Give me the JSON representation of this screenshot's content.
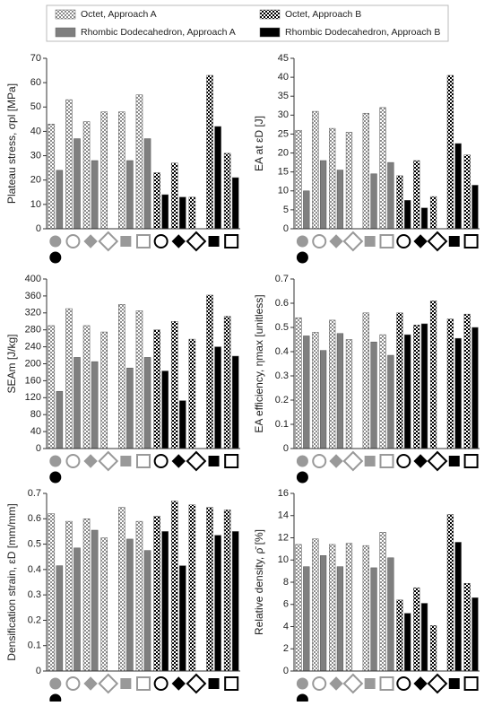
{
  "legend": [
    {
      "name": "Octet, Approach A",
      "color": "#8c8c8c",
      "style": "checker"
    },
    {
      "name": "Rhombic Dodecahedron, Approach A",
      "color": "#7f7f7f",
      "style": "solid"
    },
    {
      "name": "Octet, Approach B",
      "color": "#000000",
      "style": "checker"
    },
    {
      "name": "Rhombic Dodecahedron, Approach B",
      "color": "#000000",
      "style": "solid"
    }
  ],
  "chart_data": [
    {
      "type": "bar",
      "ylabel": "Plateau stress, σpl [MPa]",
      "categories": [
        null,
        null,
        null,
        null,
        null,
        null,
        null,
        null,
        null,
        null,
        null
      ],
      "series": [
        {
          "values": [
            43,
            53,
            44,
            48,
            48,
            55,
            null,
            null,
            null,
            null,
            null
          ]
        },
        {
          "values": [
            24,
            37,
            28,
            null,
            28,
            37,
            null,
            null,
            null,
            null,
            null
          ]
        },
        {
          "values": [
            null,
            null,
            null,
            null,
            null,
            null,
            23,
            27,
            13,
            63,
            31
          ]
        },
        {
          "values": [
            null,
            null,
            null,
            null,
            null,
            null,
            14,
            13,
            null,
            42,
            21
          ]
        }
      ],
      "ylim": [
        0,
        70
      ],
      "yticks": [
        0,
        10,
        20,
        30,
        40,
        50,
        60,
        70
      ]
    },
    {
      "type": "bar",
      "ylabel": "EA at εD [J]",
      "categories": [
        null,
        null,
        null,
        null,
        null,
        null,
        null,
        null,
        null,
        null,
        null
      ],
      "series": [
        {
          "values": [
            26,
            31,
            26.5,
            25.5,
            30.5,
            32,
            null,
            null,
            null,
            null,
            null
          ]
        },
        {
          "values": [
            10,
            18,
            15.5,
            null,
            14.5,
            17.5,
            null,
            null,
            null,
            null,
            null
          ]
        },
        {
          "values": [
            null,
            null,
            null,
            null,
            null,
            null,
            14,
            18,
            8.5,
            40.5,
            19.5
          ]
        },
        {
          "values": [
            null,
            null,
            null,
            null,
            null,
            null,
            7.5,
            5.5,
            null,
            22.5,
            11.5
          ]
        }
      ],
      "ylim": [
        0,
        45
      ],
      "yticks": [
        0,
        5,
        10,
        15,
        20,
        25,
        30,
        35,
        40,
        45
      ]
    },
    {
      "type": "bar",
      "ylabel": "SEAm [J/kg]",
      "categories": [
        null,
        null,
        null,
        null,
        null,
        null,
        null,
        null,
        null,
        null,
        null
      ],
      "series": [
        {
          "values": [
            290,
            330,
            290,
            275,
            340,
            325,
            null,
            null,
            null,
            null,
            null
          ]
        },
        {
          "values": [
            135,
            215,
            205,
            null,
            190,
            215,
            null,
            null,
            null,
            null,
            null
          ]
        },
        {
          "values": [
            null,
            null,
            null,
            null,
            null,
            null,
            280,
            300,
            258,
            362,
            312
          ]
        },
        {
          "values": [
            null,
            null,
            null,
            null,
            null,
            null,
            183,
            113,
            null,
            240,
            218
          ]
        }
      ],
      "ylim": [
        0,
        400
      ],
      "yticks": [
        0,
        40,
        80,
        120,
        160,
        200,
        240,
        280,
        320,
        360,
        400
      ]
    },
    {
      "type": "bar",
      "ylabel": "EA efficiency, ηmax [unitless]",
      "categories": [
        null,
        null,
        null,
        null,
        null,
        null,
        null,
        null,
        null,
        null,
        null
      ],
      "series": [
        {
          "values": [
            0.54,
            0.48,
            0.53,
            0.45,
            0.56,
            0.47,
            null,
            null,
            null,
            null,
            null
          ]
        },
        {
          "values": [
            0.465,
            0.405,
            0.475,
            null,
            0.44,
            0.385,
            null,
            null,
            null,
            null,
            null
          ]
        },
        {
          "values": [
            null,
            null,
            null,
            null,
            null,
            null,
            0.56,
            0.51,
            0.61,
            0.535,
            0.555
          ]
        },
        {
          "values": [
            null,
            null,
            null,
            null,
            null,
            null,
            0.47,
            0.515,
            null,
            0.455,
            0.5
          ]
        }
      ],
      "ylim": [
        0,
        0.7
      ],
      "yticks": [
        0,
        0.1,
        0.2,
        0.3,
        0.4,
        0.5,
        0.6,
        0.7
      ]
    },
    {
      "type": "bar",
      "ylabel": "Densification strain, εD [mm/mm]",
      "categories": [
        null,
        null,
        null,
        null,
        null,
        null,
        null,
        null,
        null,
        null,
        null
      ],
      "series": [
        {
          "values": [
            0.62,
            0.59,
            0.6,
            0.525,
            0.645,
            0.59,
            null,
            null,
            null,
            null,
            null
          ]
        },
        {
          "values": [
            0.415,
            0.485,
            0.555,
            null,
            0.52,
            0.475,
            null,
            null,
            null,
            null,
            null
          ]
        },
        {
          "values": [
            null,
            null,
            null,
            null,
            null,
            null,
            0.61,
            0.67,
            0.655,
            0.645,
            0.635
          ]
        },
        {
          "values": [
            null,
            null,
            null,
            null,
            null,
            null,
            0.55,
            0.415,
            null,
            0.535,
            0.55
          ]
        }
      ],
      "ylim": [
        0,
        0.7
      ],
      "yticks": [
        0,
        0.1,
        0.2,
        0.3,
        0.4,
        0.5,
        0.6,
        0.7
      ]
    },
    {
      "type": "bar",
      "ylabel": "Relative density, ρ̄ [%]",
      "categories": [
        null,
        null,
        null,
        null,
        null,
        null,
        null,
        null,
        null,
        null,
        null
      ],
      "series": [
        {
          "values": [
            11.4,
            11.9,
            11.4,
            11.5,
            11.3,
            12.5,
            null,
            null,
            null,
            null,
            null
          ]
        },
        {
          "values": [
            9.4,
            10.4,
            9.4,
            null,
            9.3,
            10.2,
            null,
            null,
            null,
            null,
            null
          ]
        },
        {
          "values": [
            null,
            null,
            null,
            null,
            null,
            null,
            6.4,
            7.5,
            4.1,
            14.1,
            7.9
          ]
        },
        {
          "values": [
            null,
            null,
            null,
            null,
            null,
            null,
            5.2,
            6.1,
            null,
            11.6,
            6.6
          ]
        }
      ],
      "ylim": [
        0,
        16
      ],
      "yticks": [
        0,
        2,
        4,
        6,
        8,
        10,
        12,
        14,
        16
      ]
    }
  ]
}
